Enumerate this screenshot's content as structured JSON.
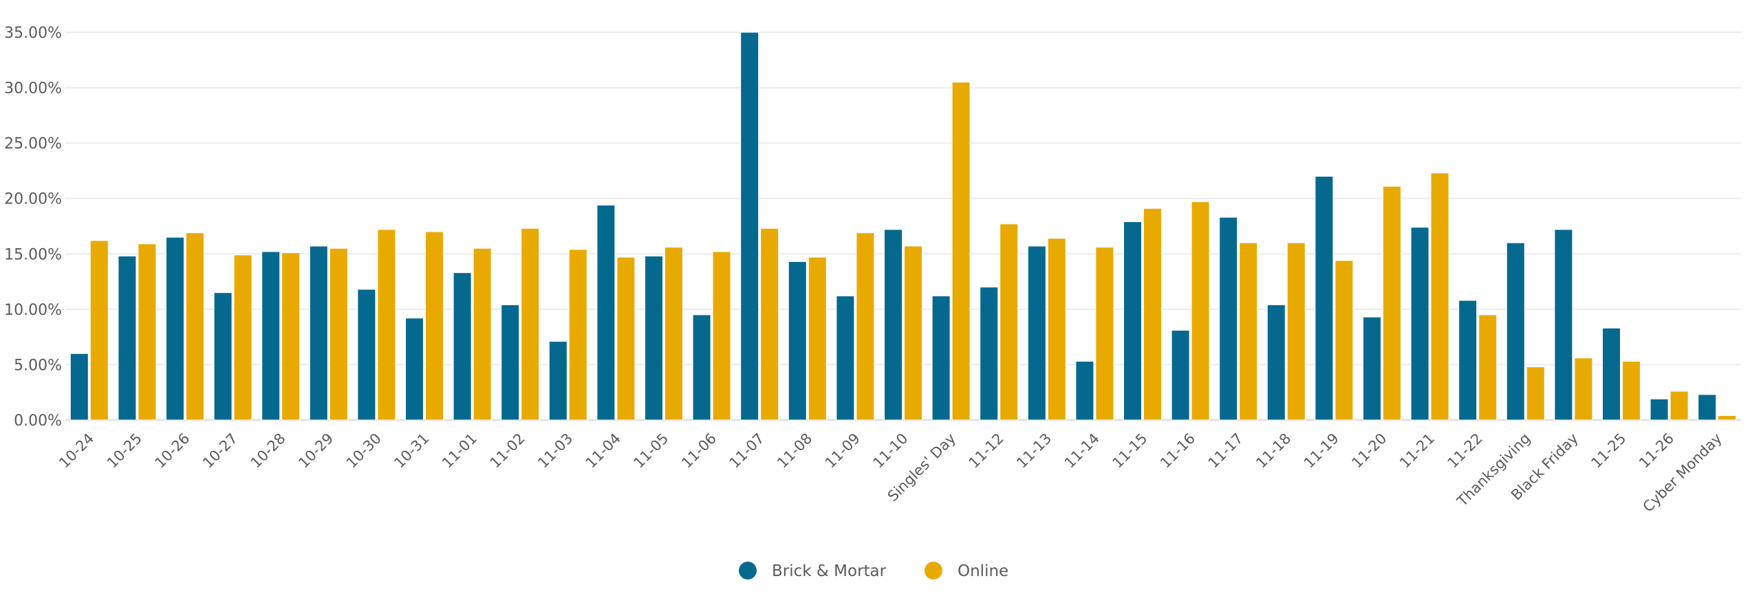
{
  "chart_data": {
    "type": "bar",
    "title": "",
    "xlabel": "",
    "ylabel": "",
    "ylim": [
      0,
      35
    ],
    "y_ticks": [
      "0.00%",
      "5.00%",
      "10.00%",
      "15.00%",
      "20.00%",
      "25.00%",
      "30.00%",
      "35.00%"
    ],
    "grid": true,
    "legend_position": "bottom-center",
    "categories": [
      "10-24",
      "10-25",
      "10-26",
      "10-27",
      "10-28",
      "10-29",
      "10-30",
      "10-31",
      "11-01",
      "11-02",
      "11-03",
      "11-04",
      "11-05",
      "11-06",
      "11-07",
      "11-08",
      "11-09",
      "11-10",
      "Singles' Day",
      "11-12",
      "11-13",
      "11-14",
      "11-15",
      "11-16",
      "11-17",
      "11-18",
      "11-19",
      "11-20",
      "11-21",
      "11-22",
      "Thanksgiving",
      "Black Friday",
      "11-25",
      "11-26",
      "Cyber Monday"
    ],
    "series": [
      {
        "name": "Brick & Mortar",
        "color": "#05698f",
        "values": [
          6.0,
          14.8,
          16.5,
          11.5,
          15.2,
          15.7,
          11.8,
          9.2,
          13.3,
          10.4,
          7.1,
          19.4,
          14.8,
          9.5,
          35.0,
          14.3,
          11.2,
          17.2,
          11.2,
          12.0,
          15.7,
          5.3,
          17.9,
          8.1,
          18.3,
          10.4,
          22.0,
          9.3,
          17.4,
          10.8,
          16.0,
          17.2,
          8.3,
          1.9,
          2.3
        ]
      },
      {
        "name": "Online",
        "color": "#e8aa00",
        "values": [
          16.2,
          15.9,
          16.9,
          14.9,
          15.1,
          15.5,
          17.2,
          17.0,
          15.5,
          17.3,
          15.4,
          14.7,
          15.6,
          15.2,
          17.3,
          14.7,
          16.9,
          15.7,
          30.5,
          17.7,
          16.4,
          15.6,
          19.1,
          19.7,
          16.0,
          16.0,
          14.4,
          21.1,
          22.3,
          9.5,
          4.8,
          5.6,
          5.3,
          2.6,
          0.4
        ]
      }
    ]
  }
}
